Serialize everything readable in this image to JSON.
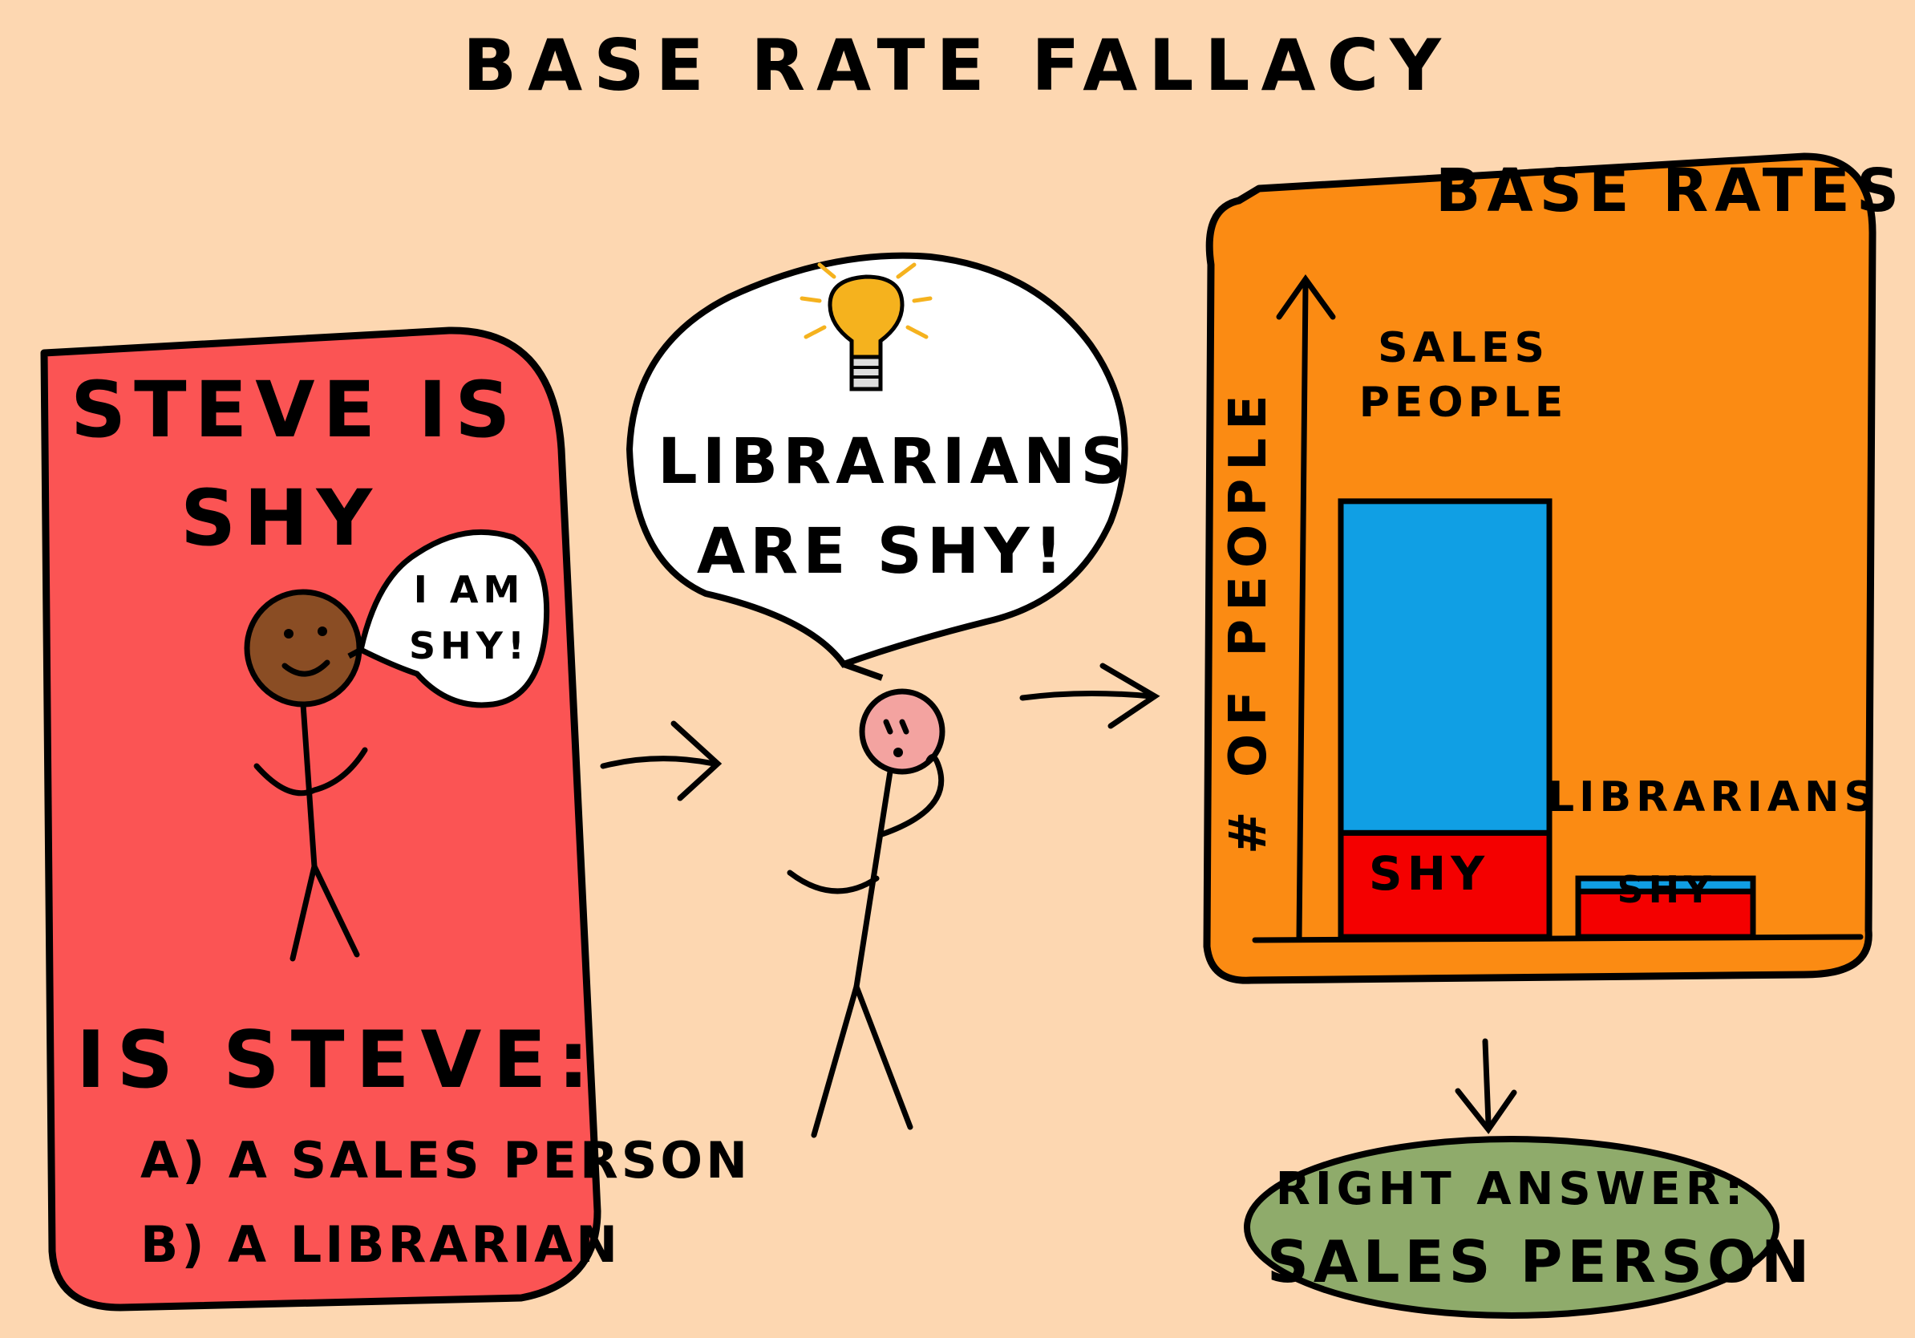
{
  "title": "BASE RATE FALLACY",
  "left_panel": {
    "statement_line1": "STEVE IS",
    "statement_line2": "SHY",
    "speech_line1": "I AM",
    "speech_line2": "SHY!",
    "question": "IS STEVE:",
    "option_a": "A) A SALES PERSON",
    "option_b": "B) A LIBRARIAN",
    "color": "#fb5454"
  },
  "thought": {
    "line1": "LIBRARIANS",
    "line2": "ARE SHY!",
    "icon": "lightbulb-icon"
  },
  "chart_data": {
    "type": "bar",
    "title": "BASE RATES",
    "ylabel": "# OF PEOPLE",
    "xlabel": "",
    "categories": [
      "SALES PEOPLE",
      "LIBRARIANS"
    ],
    "series": [
      {
        "name": "SHY",
        "values": [
          16,
          7
        ]
      },
      {
        "name": "",
        "values": [
          51,
          2
        ]
      }
    ],
    "ylim": [
      0,
      75
    ],
    "colors": {
      "shy": "#f40000",
      "other": "#109fe4",
      "background": "#fb8b13"
    }
  },
  "answer": {
    "line1": "RIGHT ANSWER:",
    "line2": "SALES PERSON",
    "color": "#8fab6b"
  }
}
